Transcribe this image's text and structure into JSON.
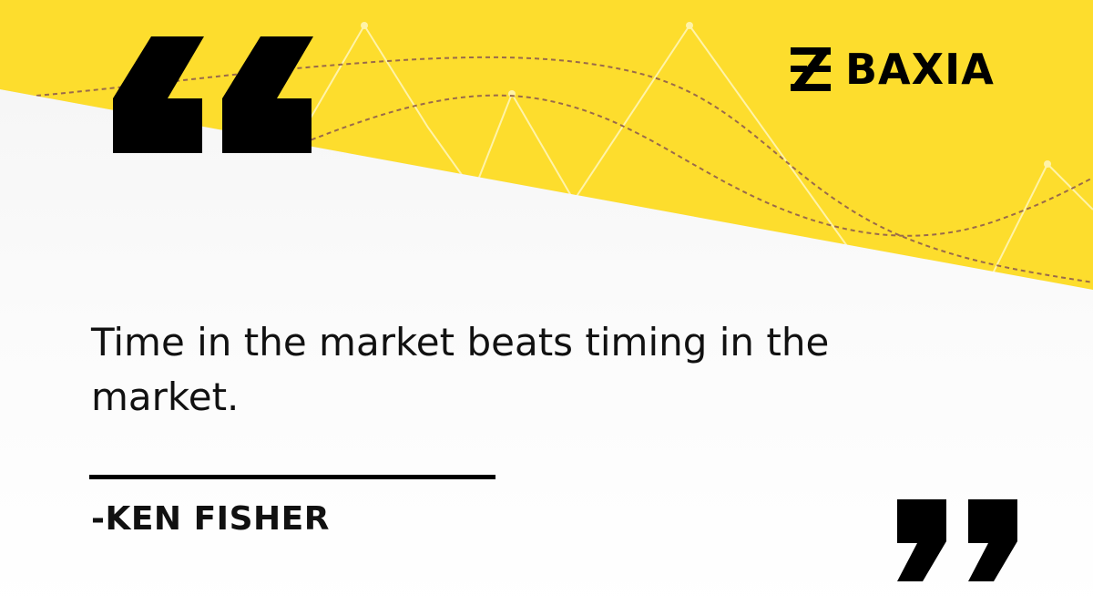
{
  "brand": {
    "name": "BAXIA",
    "accent_color": "#fddd2d",
    "ink_color": "#000000"
  },
  "quote": {
    "text": "Time in the market beats timing in the market.",
    "author": "-KEN FISHER"
  },
  "icons": {
    "open_quote": "double-quote-open-icon",
    "close_quote": "double-quote-close-icon",
    "logo_mark": "baxia-logo-mark"
  }
}
